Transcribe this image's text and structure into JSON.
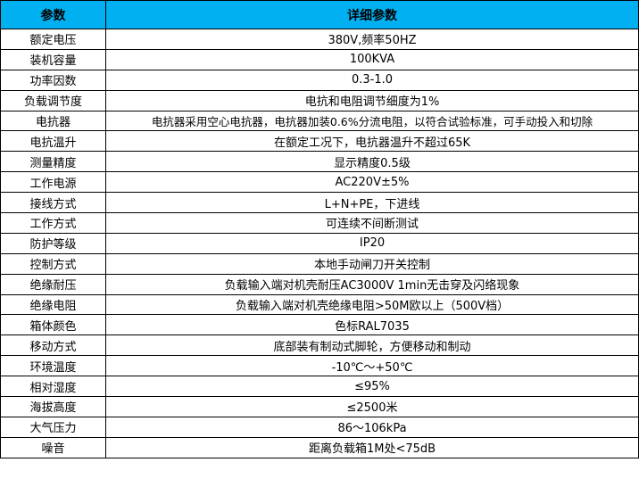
{
  "header": {
    "param": "参数",
    "detail": "详细参数",
    "bg_color": "#00B0F0"
  },
  "rows": [
    {
      "param": "额定电压",
      "detail": "380V,频率50HZ"
    },
    {
      "param": "装机容量",
      "detail": "100KVA"
    },
    {
      "param": "功率因数",
      "detail": "0.3-1.0"
    },
    {
      "param": "负载调节度",
      "detail": "电抗和电阻调节细度为1%"
    },
    {
      "param": "电抗器",
      "detail": "电抗器采用空心电抗器，电抗器加装0.6%分流电阻，以符合试验标准，可手动投入和切除"
    },
    {
      "param": "电抗温升",
      "detail": "在额定工况下，电抗器温升不超过65K"
    },
    {
      "param": "测量精度",
      "detail": "显示精度0.5级"
    },
    {
      "param": "工作电源",
      "detail": "AC220V±5%"
    },
    {
      "param": "接线方式",
      "detail": "L+N+PE，下进线"
    },
    {
      "param": "工作方式",
      "detail": "可连续不间断测试"
    },
    {
      "param": "防护等级",
      "detail": "IP20"
    },
    {
      "param": "控制方式",
      "detail": "本地手动闸刀开关控制"
    },
    {
      "param": "绝缘耐压",
      "detail": "负载输入端对机壳耐压AC3000V 1min无击穿及闪络现象"
    },
    {
      "param": "绝缘电阻",
      "detail": "负载输入端对机壳绝缘电阻>50M欧以上（500V档）"
    },
    {
      "param": "箱体颜色",
      "detail": "色标RAL7035"
    },
    {
      "param": "移动方式",
      "detail": "底部装有制动式脚轮，方便移动和制动"
    },
    {
      "param": "环境温度",
      "detail": "-10℃～+50℃"
    },
    {
      "param": "相对湿度",
      "detail": "≤95%"
    },
    {
      "param": "海拔高度",
      "detail": "≤2500米"
    },
    {
      "param": "大气压力",
      "detail": "86～106kPa"
    },
    {
      "param": "噪音",
      "detail": "距离负载箱1M处<75dB"
    }
  ]
}
